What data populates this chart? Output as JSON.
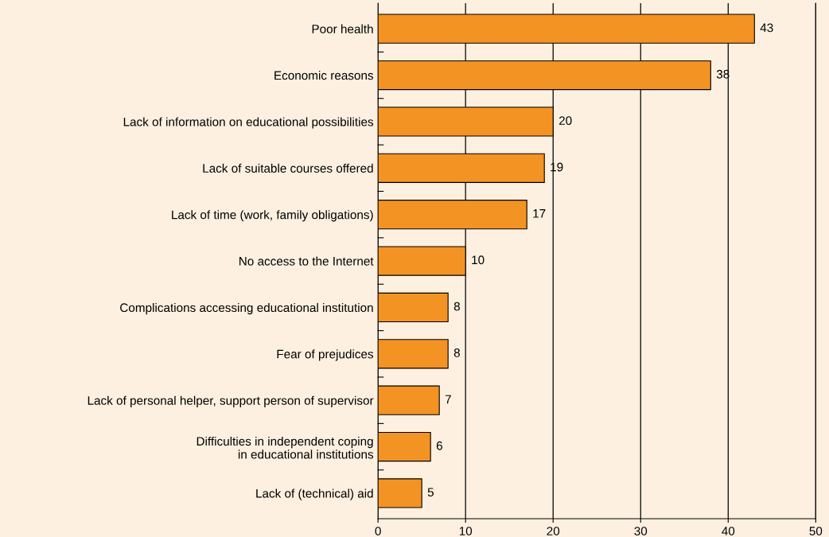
{
  "chart_data": {
    "type": "bar",
    "orientation": "horizontal",
    "categories": [
      "Poor health",
      "Economic reasons",
      "Lack of information on educational possibilities",
      "Lack of suitable courses offered",
      "Lack of time (work, family obligations)",
      "No access to the Internet",
      "Complications accessing educational institution",
      "Fear of prejudices",
      "Lack of personal helper, support person of supervisor",
      "Difficulties in independent coping\nin educational institutions",
      "Lack of (technical) aid"
    ],
    "values": [
      43,
      38,
      20,
      19,
      17,
      10,
      8,
      8,
      7,
      6,
      5
    ],
    "color": "#f39323",
    "xlim": [
      0,
      50
    ],
    "xticks": [
      0,
      10,
      20,
      30,
      40,
      50
    ],
    "grid": "x",
    "data_labels": true,
    "legend": false
  }
}
